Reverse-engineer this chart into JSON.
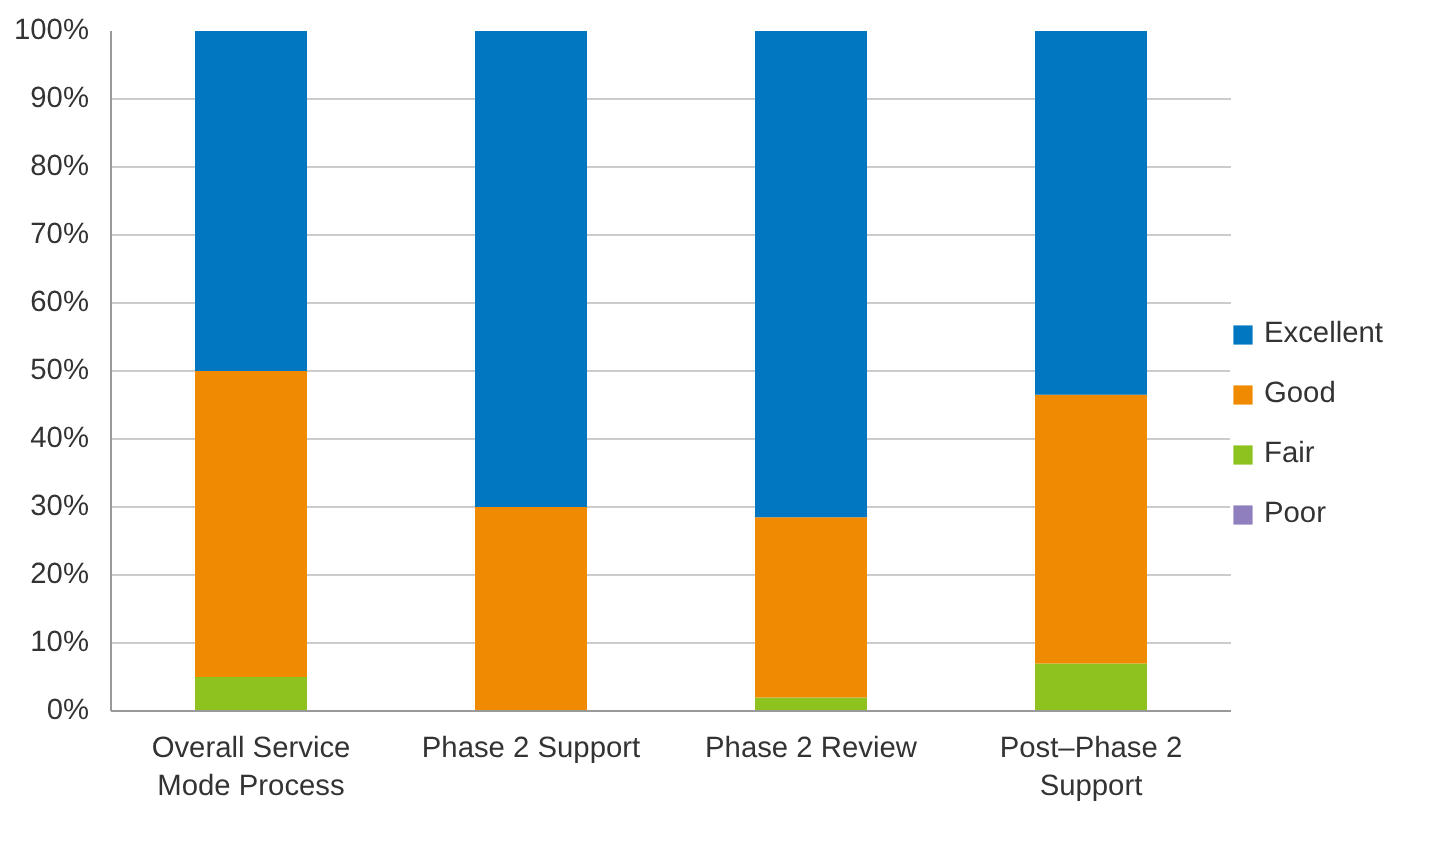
{
  "chart_data": {
    "type": "bar",
    "stacked": true,
    "categories": [
      "Overall Service Mode Process",
      "Phase 2 Support",
      "Phase 2 Review",
      "Post–Phase 2 Support"
    ],
    "series": [
      {
        "name": "Poor",
        "color": "#8f7fbf",
        "values": [
          0,
          0,
          0,
          0
        ]
      },
      {
        "name": "Fair",
        "color": "#8dc21f",
        "values": [
          5,
          0,
          2,
          7
        ]
      },
      {
        "name": "Good",
        "color": "#f08a00",
        "values": [
          45,
          30,
          26.5,
          39.5
        ]
      },
      {
        "name": "Excellent",
        "color": "#0077c0",
        "values": [
          50,
          70,
          71.5,
          53.5
        ]
      }
    ],
    "ylim": [
      0,
      100
    ],
    "yticks": [
      {
        "value": 0,
        "label": "0%"
      },
      {
        "value": 10,
        "label": "10%"
      },
      {
        "value": 20,
        "label": "20%"
      },
      {
        "value": 30,
        "label": "30%"
      },
      {
        "value": 40,
        "label": "40%"
      },
      {
        "value": 50,
        "label": "50%"
      },
      {
        "value": 60,
        "label": "60%"
      },
      {
        "value": 70,
        "label": "70%"
      },
      {
        "value": 80,
        "label": "80%"
      },
      {
        "value": 90,
        "label": "90%"
      },
      {
        "value": 100,
        "label": "100%"
      }
    ],
    "grid": "y",
    "legend": "right"
  }
}
